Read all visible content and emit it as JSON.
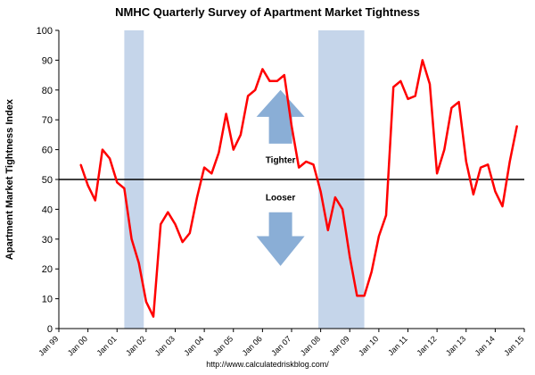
{
  "chart_data": {
    "type": "line",
    "title": "NMHC Quarterly Survey of Apartment Market Tightness",
    "ylabel": "Apartment Market Tightness Index",
    "xlabel": "",
    "ylim": [
      0,
      100
    ],
    "yticks": [
      0,
      10,
      20,
      30,
      40,
      50,
      60,
      70,
      80,
      90,
      100
    ],
    "xlim": [
      1999,
      2015
    ],
    "xticks": [
      {
        "x": 1999,
        "label": "Jan 99"
      },
      {
        "x": 2000,
        "label": "Jan 00"
      },
      {
        "x": 2001,
        "label": "Jan 01"
      },
      {
        "x": 2002,
        "label": "Jan 02"
      },
      {
        "x": 2003,
        "label": "Jan 03"
      },
      {
        "x": 2004,
        "label": "Jan 04"
      },
      {
        "x": 2005,
        "label": "Jan 05"
      },
      {
        "x": 2006,
        "label": "Jan 06"
      },
      {
        "x": 2007,
        "label": "Jan 07"
      },
      {
        "x": 2008,
        "label": "Jan 08"
      },
      {
        "x": 2009,
        "label": "Jan 09"
      },
      {
        "x": 2010,
        "label": "Jan 10"
      },
      {
        "x": 2011,
        "label": "Jan 11"
      },
      {
        "x": 2012,
        "label": "Jan 12"
      },
      {
        "x": 2013,
        "label": "Jan 13"
      },
      {
        "x": 2014,
        "label": "Jan 14"
      },
      {
        "x": 2015,
        "label": "Jan 15"
      }
    ],
    "recessions": [
      {
        "start": 2001.25,
        "end": 2001.92
      },
      {
        "start": 2007.92,
        "end": 2009.5
      }
    ],
    "reference_line": 50,
    "series": [
      {
        "name": "Tightness Index",
        "color": "#ff0000",
        "x": [
          1999.75,
          2000.0,
          2000.25,
          2000.5,
          2000.75,
          2001.0,
          2001.25,
          2001.5,
          2001.75,
          2002.0,
          2002.25,
          2002.5,
          2002.75,
          2003.0,
          2003.25,
          2003.5,
          2003.75,
          2004.0,
          2004.25,
          2004.5,
          2004.75,
          2005.0,
          2005.25,
          2005.5,
          2005.75,
          2006.0,
          2006.25,
          2006.5,
          2006.75,
          2007.0,
          2007.25,
          2007.5,
          2007.75,
          2008.0,
          2008.25,
          2008.5,
          2008.75,
          2009.0,
          2009.25,
          2009.5,
          2009.75,
          2010.0,
          2010.25,
          2010.5,
          2010.75,
          2011.0,
          2011.25,
          2011.5,
          2011.75,
          2012.0,
          2012.25,
          2012.5,
          2012.75,
          2013.0,
          2013.25,
          2013.5,
          2013.75,
          2014.0,
          2014.25,
          2014.5,
          2014.75
        ],
        "y": [
          55,
          48,
          43,
          60,
          57,
          49,
          47,
          30,
          22,
          9,
          4,
          35,
          39,
          35,
          29,
          32,
          44,
          54,
          52,
          59,
          72,
          60,
          65,
          78,
          80,
          87,
          83,
          83,
          85,
          68,
          54,
          56,
          55,
          46,
          33,
          44,
          40,
          24,
          11,
          11,
          19,
          31,
          38,
          81,
          83,
          77,
          78,
          90,
          82,
          52,
          60,
          74,
          76,
          56,
          45,
          54,
          55,
          46,
          41,
          56,
          68
        ]
      }
    ],
    "annotations": [
      {
        "label": "Tighter",
        "direction": "up"
      },
      {
        "label": "Looser",
        "direction": "down"
      }
    ],
    "source": "http://www.calculatedriskblog.com/"
  },
  "colors": {
    "line": "#ff0000",
    "recession": "#c5d5ea",
    "arrow": "#8aaed6",
    "reference": "#000000"
  }
}
